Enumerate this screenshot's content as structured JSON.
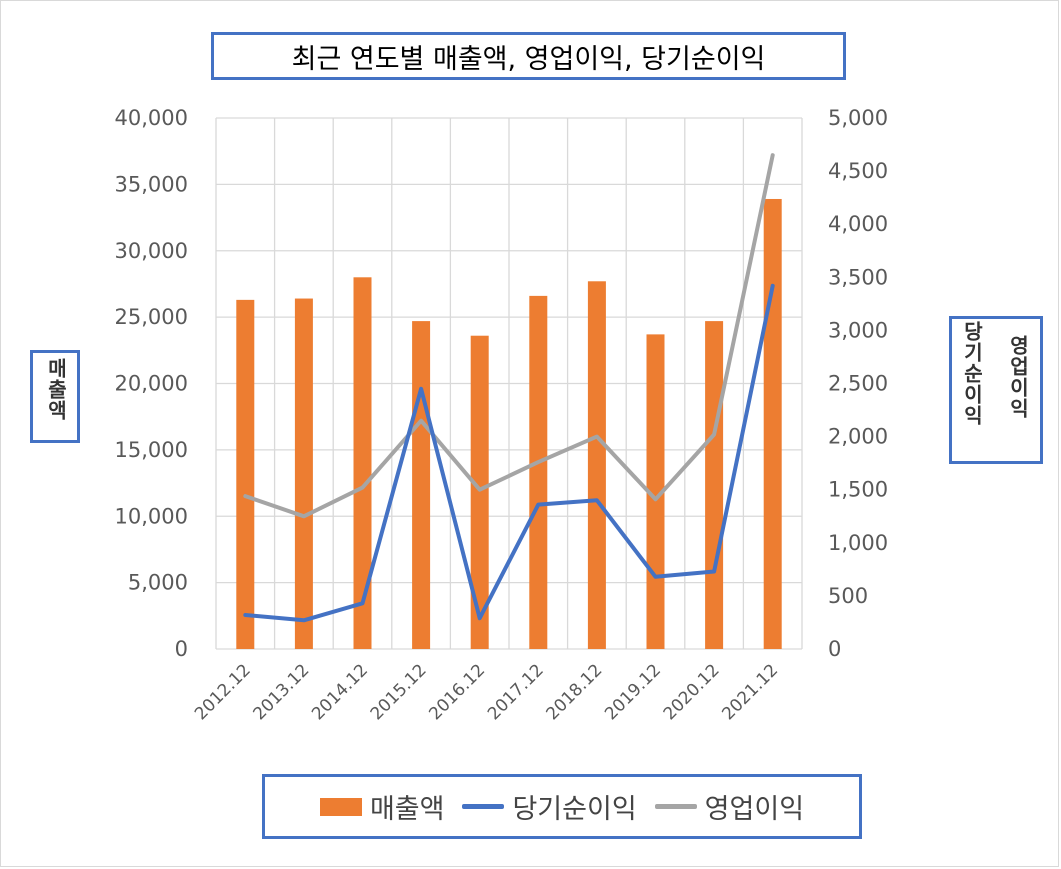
{
  "chart_data": {
    "type": "bar",
    "title": "최근 연도별 매출액, 영업이익, 당기순이익",
    "categories": [
      "2012.12",
      "2013.12",
      "2014.12",
      "2015.12",
      "2016.12",
      "2017.12",
      "2018.12",
      "2019.12",
      "2020.12",
      "2021.12"
    ],
    "series": [
      {
        "name": "매출액",
        "type": "bar",
        "axis": "left",
        "color": "#ed7d31",
        "values": [
          26300,
          26400,
          28000,
          24700,
          23600,
          26600,
          27700,
          23700,
          24700,
          33900
        ]
      },
      {
        "name": "당기순이익",
        "type": "line",
        "axis": "right",
        "color": "#4472c4",
        "values": [
          320,
          270,
          430,
          2450,
          290,
          1360,
          1400,
          680,
          730,
          3420
        ]
      },
      {
        "name": "영업이익",
        "type": "line",
        "axis": "right",
        "color": "#a5a5a5",
        "values": [
          1440,
          1250,
          1520,
          2150,
          1500,
          1760,
          2000,
          1410,
          2020,
          4650
        ]
      }
    ],
    "y_left": {
      "label": "매출액",
      "lim": [
        0,
        40000
      ],
      "ticks": [
        "0",
        "5,000",
        "10,000",
        "15,000",
        "20,000",
        "25,000",
        "30,000",
        "35,000",
        "40,000"
      ]
    },
    "y_right": {
      "label_1": "영업이익",
      "label_2": "당기순이익",
      "lim": [
        0,
        5000
      ],
      "ticks": [
        "0",
        "500",
        "1,000",
        "1,500",
        "2,000",
        "2,500",
        "3,000",
        "3,500",
        "4,000",
        "4,500",
        "5,000"
      ]
    },
    "grid": true,
    "legend_position": "bottom"
  }
}
